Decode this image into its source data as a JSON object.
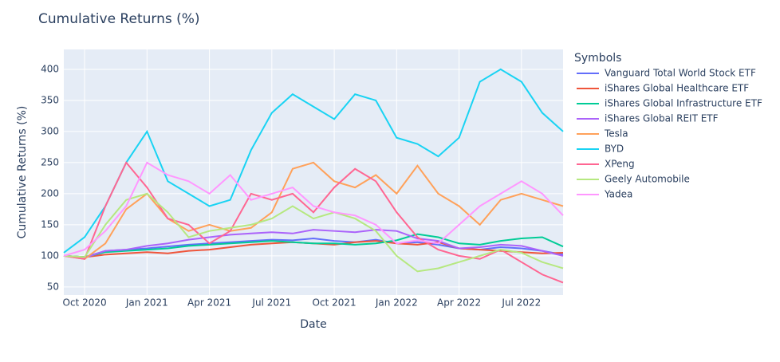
{
  "chart_data": {
    "type": "line",
    "title": "Cumulative Returns (%)",
    "x_label": "Date",
    "y_label": "Cumulative Returns (%)",
    "legend_title": "Symbols",
    "legend_position": "right",
    "grid": true,
    "x": [
      "2020-09",
      "2020-10",
      "2020-11",
      "2020-12",
      "2021-01",
      "2021-02",
      "2021-03",
      "2021-04",
      "2021-05",
      "2021-06",
      "2021-07",
      "2021-08",
      "2021-09",
      "2021-10",
      "2021-11",
      "2021-12",
      "2022-01",
      "2022-02",
      "2022-03",
      "2022-04",
      "2022-05",
      "2022-06",
      "2022-07",
      "2022-08",
      "2022-09"
    ],
    "xlim": [
      "2020-09",
      "2022-09"
    ],
    "xticks": [
      {
        "value": "2020-10",
        "label": "Oct 2020"
      },
      {
        "value": "2021-01",
        "label": "Jan 2021"
      },
      {
        "value": "2021-04",
        "label": "Apr 2021"
      },
      {
        "value": "2021-07",
        "label": "Jul 2021"
      },
      {
        "value": "2021-10",
        "label": "Oct 2021"
      },
      {
        "value": "2022-01",
        "label": "Jan 2022"
      },
      {
        "value": "2022-04",
        "label": "Apr 2022"
      },
      {
        "value": "2022-07",
        "label": "Jul 2022"
      }
    ],
    "ylim": [
      37,
      432
    ],
    "yticks": [
      50,
      100,
      150,
      200,
      250,
      300,
      350,
      400
    ],
    "series": [
      {
        "name": "Vanguard Total World Stock ETF",
        "color": "#636efa",
        "values": [
          100,
          98,
          108,
          110,
          112,
          115,
          118,
          120,
          122,
          124,
          126,
          125,
          128,
          124,
          122,
          126,
          120,
          122,
          118,
          112,
          110,
          114,
          112,
          108,
          102
        ]
      },
      {
        "name": "iShares Global Healthcare ETF",
        "color": "#ef553b",
        "values": [
          100,
          98,
          102,
          104,
          106,
          104,
          108,
          110,
          114,
          118,
          120,
          122,
          120,
          118,
          122,
          124,
          120,
          118,
          122,
          112,
          110,
          108,
          106,
          104,
          105
        ]
      },
      {
        "name": "iShares Global Infrastructure ETF",
        "color": "#00cc96",
        "values": [
          100,
          98,
          106,
          108,
          110,
          112,
          116,
          118,
          120,
          122,
          124,
          122,
          120,
          120,
          118,
          120,
          125,
          135,
          130,
          120,
          118,
          124,
          128,
          130,
          115
        ]
      },
      {
        "name": "iShares Global REIT ETF",
        "color": "#ab63fa",
        "values": [
          100,
          97,
          108,
          110,
          116,
          120,
          126,
          130,
          134,
          136,
          138,
          136,
          142,
          140,
          138,
          142,
          140,
          128,
          124,
          112,
          114,
          118,
          116,
          108,
          100
        ]
      },
      {
        "name": "Tesla",
        "color": "#ffa15a",
        "values": [
          100,
          95,
          120,
          175,
          200,
          160,
          140,
          150,
          140,
          145,
          170,
          240,
          250,
          220,
          210,
          230,
          200,
          245,
          200,
          180,
          150,
          190,
          200,
          190,
          180
        ]
      },
      {
        "name": "BYD",
        "color": "#19d3f3",
        "values": [
          105,
          130,
          180,
          250,
          300,
          220,
          200,
          180,
          190,
          270,
          330,
          360,
          340,
          320,
          360,
          350,
          290,
          280,
          260,
          290,
          380,
          400,
          380,
          330,
          300
        ]
      },
      {
        "name": "XPeng",
        "color": "#ff6692",
        "values": [
          100,
          95,
          180,
          250,
          210,
          160,
          150,
          120,
          140,
          200,
          190,
          200,
          170,
          210,
          240,
          220,
          170,
          130,
          110,
          100,
          95,
          110,
          90,
          70,
          57
        ]
      },
      {
        "name": "Geely Automobile",
        "color": "#b6e880",
        "values": [
          100,
          98,
          150,
          190,
          200,
          170,
          130,
          140,
          145,
          150,
          160,
          180,
          160,
          170,
          160,
          140,
          100,
          75,
          80,
          90,
          100,
          110,
          105,
          90,
          80
        ]
      },
      {
        "name": "Yadea",
        "color": "#ff97ff",
        "values": [
          100,
          110,
          140,
          180,
          250,
          230,
          220,
          200,
          230,
          190,
          200,
          210,
          180,
          170,
          165,
          150,
          120,
          125,
          120,
          150,
          180,
          200,
          220,
          200,
          165
        ]
      }
    ]
  }
}
